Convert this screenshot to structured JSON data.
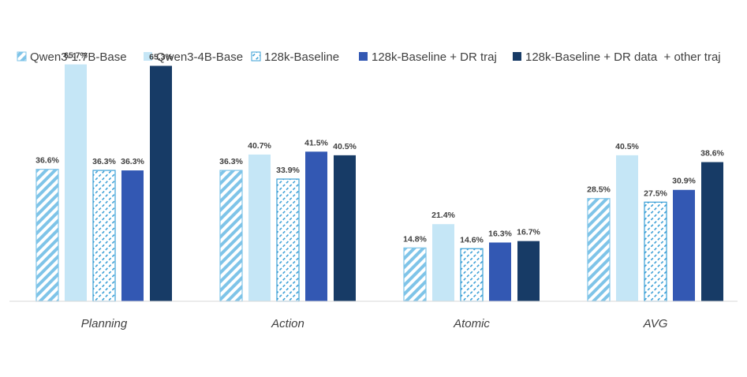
{
  "chart_data": {
    "type": "bar",
    "categories": [
      "Planning",
      "Action",
      "Atomic",
      "AVG"
    ],
    "series": [
      {
        "name": "Qwen3-1.7B-Base",
        "values": [
          36.6,
          36.3,
          14.8,
          28.5
        ],
        "labels": [
          "36.6%",
          "36.3%",
          "14.8%",
          "28.5%"
        ],
        "color": "#7fc4e8",
        "pattern": "diagonal-stripes"
      },
      {
        "name": "Qwen3-4B-Base",
        "values": [
          65.7,
          40.7,
          21.4,
          40.5
        ],
        "labels": [
          "65.7%",
          "40.7%",
          "21.4%",
          "40.5%"
        ],
        "color": "#c5e6f6",
        "pattern": "solid"
      },
      {
        "name": "128k-Baseline",
        "values": [
          36.3,
          33.9,
          14.6,
          27.5
        ],
        "labels": [
          "36.3%",
          "33.9%",
          "14.6%",
          "27.5%"
        ],
        "color": "#3a9fd6",
        "pattern": "dashed-hatch"
      },
      {
        "name": "128k-Baseline + DR traj",
        "values": [
          36.3,
          41.5,
          16.3,
          30.9
        ],
        "labels": [
          "36.3%",
          "41.5%",
          "16.3%",
          "30.9%"
        ],
        "color": "#3358b3",
        "pattern": "solid"
      },
      {
        "name": "128k-Baseline + DR data  + other traj",
        "values": [
          65.3,
          40.5,
          16.7,
          38.6
        ],
        "labels": [
          "65.3%",
          "40.5%",
          "16.7%",
          "38.6%"
        ],
        "color": "#173b66",
        "pattern": "solid"
      }
    ],
    "ylim": [
      0,
      70
    ],
    "grid": false,
    "legend_position": "top",
    "title": "",
    "xlabel": "",
    "ylabel": ""
  }
}
